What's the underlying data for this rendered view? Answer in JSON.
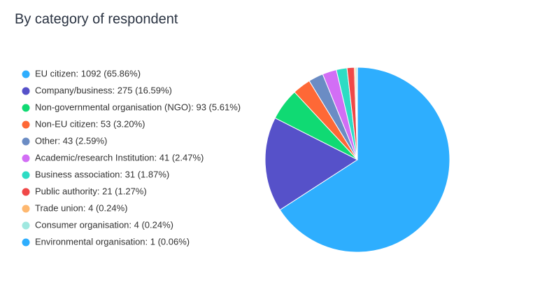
{
  "chart_data": {
    "type": "pie",
    "title": "By category of respondent",
    "categories": [
      "EU citizen: 1092 (65.86%)",
      "Company/business: 275 (16.59%)",
      "Non-governmental organisation (NGO): 93 (5.61%)",
      "Non-EU citizen: 53 (3.20%)",
      "Other: 43 (2.59%)",
      "Academic/research Institution: 41 (2.47%)",
      "Business association: 31 (1.87%)",
      "Public authority: 21 (1.27%)",
      "Trade union: 4 (0.24%)",
      "Consumer organisation: 4 (0.24%)",
      "Environmental organisation: 1 (0.06%)"
    ],
    "values": [
      1092,
      275,
      93,
      53,
      43,
      41,
      31,
      21,
      4,
      4,
      1
    ],
    "colors": [
      "#2eaefe",
      "#5651c9",
      "#10da73",
      "#fe6836",
      "#6b8cc4",
      "#d26ef5",
      "#2ddcc4",
      "#f04848",
      "#feb870",
      "#a0e8e0",
      "#2eaefe"
    ],
    "legend": "left"
  }
}
